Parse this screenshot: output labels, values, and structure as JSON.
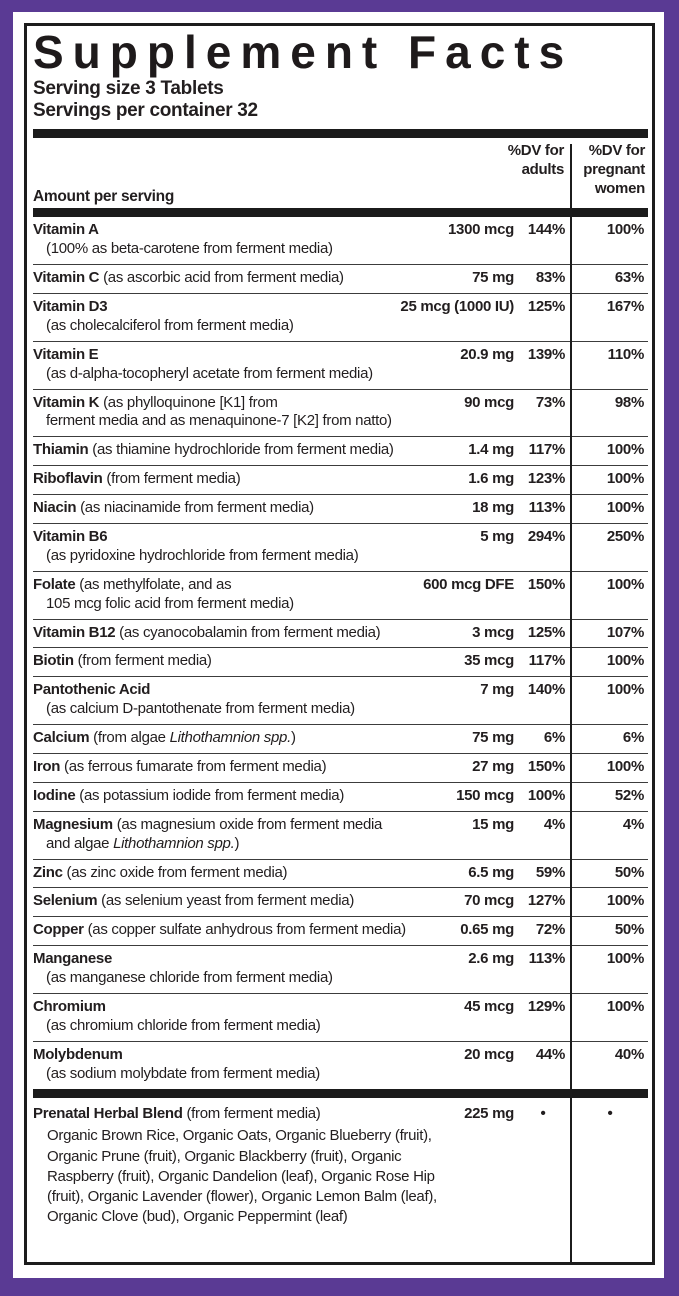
{
  "colors": {
    "frame_purple": "#5a3a94",
    "text_black": "#221e1f"
  },
  "header": {
    "title": "Supplement Facts",
    "serving_size": "Serving size 3 Tablets",
    "servings_per_container": "Servings per container 32"
  },
  "columns": {
    "amount": "Amount per serving",
    "dv_adults": "%DV for\nadults",
    "dv_pregnant": "%DV for\npregnant\nwomen"
  },
  "rows": [
    {
      "name": "Vitamin A",
      "desc": [],
      "sub": [
        {
          "text": "(100% as beta-carotene from ferment media)"
        }
      ],
      "amount": "1300 mcg",
      "dv_adults": "144%",
      "dv_pregnant": "100%"
    },
    {
      "name": "Vitamin C",
      "desc": [
        {
          "text": "(as ascorbic acid from ferment media)"
        }
      ],
      "sub": [],
      "amount": "75 mg",
      "dv_adults": "83%",
      "dv_pregnant": "63%"
    },
    {
      "name": "Vitamin D3",
      "desc": [],
      "sub": [
        {
          "text": "(as cholecalciferol from ferment media)"
        }
      ],
      "amount": "25 mcg (1000 IU)",
      "dv_adults": "125%",
      "dv_pregnant": "167%"
    },
    {
      "name": "Vitamin E",
      "desc": [],
      "sub": [
        {
          "text": "(as d-alpha-tocopheryl acetate from ferment media)"
        }
      ],
      "amount": "20.9 mg",
      "dv_adults": "139%",
      "dv_pregnant": "110%"
    },
    {
      "name": "Vitamin K",
      "desc": [
        {
          "text": "(as phylloquinone [K1] from"
        }
      ],
      "sub": [
        {
          "text": "ferment media and as menaquinone-7 [K2] from natto)"
        }
      ],
      "amount": "90 mcg",
      "dv_adults": "73%",
      "dv_pregnant": "98%"
    },
    {
      "name": "Thiamin",
      "desc": [
        {
          "text": "(as thiamine hydrochloride from ferment media)"
        }
      ],
      "sub": [],
      "amount": "1.4 mg",
      "dv_adults": "117%",
      "dv_pregnant": "100%"
    },
    {
      "name": "Riboflavin",
      "desc": [
        {
          "text": "(from ferment media)"
        }
      ],
      "sub": [],
      "amount": "1.6 mg",
      "dv_adults": "123%",
      "dv_pregnant": "100%"
    },
    {
      "name": "Niacin",
      "desc": [
        {
          "text": "(as niacinamide from ferment media)"
        }
      ],
      "sub": [],
      "amount": "18 mg",
      "dv_adults": "113%",
      "dv_pregnant": "100%"
    },
    {
      "name": "Vitamin B6",
      "desc": [],
      "sub": [
        {
          "text": "(as pyridoxine hydrochloride from ferment media)"
        }
      ],
      "amount": "5 mg",
      "dv_adults": "294%",
      "dv_pregnant": "250%"
    },
    {
      "name": "Folate",
      "desc": [
        {
          "text": "(as methylfolate, and as"
        }
      ],
      "sub": [
        {
          "text": "105 mcg folic acid from ferment media)"
        }
      ],
      "amount": "600 mcg DFE",
      "dv_adults": "150%",
      "dv_pregnant": "100%"
    },
    {
      "name": "Vitamin B12",
      "desc": [
        {
          "text": "(as cyanocobalamin from ferment media)"
        }
      ],
      "sub": [],
      "amount": "3 mcg",
      "dv_adults": "125%",
      "dv_pregnant": "107%"
    },
    {
      "name": "Biotin",
      "desc": [
        {
          "text": "(from ferment media)"
        }
      ],
      "sub": [],
      "amount": "35 mcg",
      "dv_adults": "117%",
      "dv_pregnant": "100%"
    },
    {
      "name": "Pantothenic Acid",
      "desc": [],
      "sub": [
        {
          "text": "(as calcium D-pantothenate from ferment media)"
        }
      ],
      "amount": "7 mg",
      "dv_adults": "140%",
      "dv_pregnant": "100%"
    },
    {
      "name": "Calcium",
      "desc": [
        {
          "text": "(from algae "
        },
        {
          "text": "Lithothamnion spp.",
          "italic": true
        },
        {
          "text": ")"
        }
      ],
      "sub": [],
      "amount": "75 mg",
      "dv_adults": "6%",
      "dv_pregnant": "6%"
    },
    {
      "name": "Iron",
      "desc": [
        {
          "text": "(as ferrous fumarate from ferment media)"
        }
      ],
      "sub": [],
      "amount": "27 mg",
      "dv_adults": "150%",
      "dv_pregnant": "100%"
    },
    {
      "name": "Iodine",
      "desc": [
        {
          "text": "(as potassium iodide from ferment media)"
        }
      ],
      "sub": [],
      "amount": "150 mcg",
      "dv_adults": "100%",
      "dv_pregnant": "52%"
    },
    {
      "name": "Magnesium",
      "desc": [
        {
          "text": "(as magnesium oxide from ferment media"
        }
      ],
      "sub": [
        {
          "text": "and algae "
        },
        {
          "text": "Lithothamnion spp.",
          "italic": true
        },
        {
          "text": ")"
        }
      ],
      "amount": "15 mg",
      "dv_adults": "4%",
      "dv_pregnant": "4%"
    },
    {
      "name": "Zinc",
      "desc": [
        {
          "text": "(as zinc oxide from ferment media)"
        }
      ],
      "sub": [],
      "amount": "6.5 mg",
      "dv_adults": "59%",
      "dv_pregnant": "50%"
    },
    {
      "name": "Selenium",
      "desc": [
        {
          "text": "(as selenium yeast from ferment media)"
        }
      ],
      "sub": [],
      "amount": "70 mcg",
      "dv_adults": "127%",
      "dv_pregnant": "100%"
    },
    {
      "name": "Copper",
      "desc": [
        {
          "text": "(as copper sulfate anhydrous from ferment media)"
        }
      ],
      "sub": [],
      "amount": "0.65 mg",
      "dv_adults": "72%",
      "dv_pregnant": "50%"
    },
    {
      "name": "Manganese",
      "desc": [],
      "sub": [
        {
          "text": "(as manganese chloride from ferment media)"
        }
      ],
      "amount": "2.6 mg",
      "dv_adults": "113%",
      "dv_pregnant": "100%"
    },
    {
      "name": "Chromium",
      "desc": [],
      "sub": [
        {
          "text": "(as chromium chloride from ferment media)"
        }
      ],
      "amount": "45 mcg",
      "dv_adults": "129%",
      "dv_pregnant": "100%"
    },
    {
      "name": "Molybdenum",
      "desc": [],
      "sub": [
        {
          "text": "(as sodium molybdate from ferment media)"
        }
      ],
      "amount": "20 mcg",
      "dv_adults": "44%",
      "dv_pregnant": "40%"
    }
  ],
  "blend": {
    "name": "Prenatal Herbal Blend",
    "desc": "(from ferment media)",
    "amount": "225 mg",
    "dv_adults": "•",
    "dv_pregnant": "•",
    "ingredients": "Organic Brown Rice, Organic Oats, Organic Blueberry (fruit), Organic Prune (fruit), Organic Blackberry (fruit), Organic Raspberry (fruit), Organic Dandelion (leaf), Organic Rose Hip (fruit), Organic Lavender (flower), Organic Lemon Balm (leaf), Organic Clove (bud), Organic Peppermint (leaf)"
  }
}
